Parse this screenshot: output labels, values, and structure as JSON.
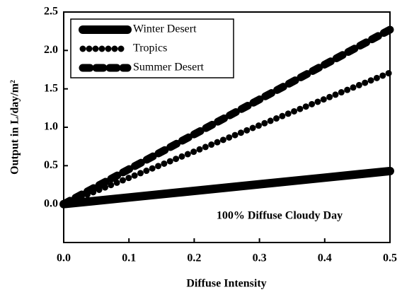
{
  "chart_data": {
    "type": "line",
    "annotation": "100% Diffuse Cloudy Day",
    "xlabel": "Diffuse Intensity",
    "ylabel": "Output in L/day/m²",
    "x": [
      0,
      0.1,
      0.2,
      0.3,
      0.4,
      0.5
    ],
    "series": [
      {
        "name": "Winter Desert",
        "color": "#000000",
        "style": "solid",
        "values": [
          0,
          0.086,
          0.172,
          0.258,
          0.344,
          0.43
        ]
      },
      {
        "name": "Tropics",
        "color": "#000000",
        "style": "dotted",
        "values": [
          0,
          0.342,
          0.684,
          1.026,
          1.368,
          1.71
        ]
      },
      {
        "name": "Summer Desert",
        "color": "#000000",
        "style": "dashed",
        "values": [
          0,
          0.454,
          0.908,
          1.362,
          1.816,
          2.27
        ]
      }
    ],
    "xlim": [
      0,
      0.5
    ],
    "xticks": [
      {
        "value": 0,
        "label": "0.0"
      },
      0.1,
      0.2,
      0.3,
      0.4,
      0.5
    ],
    "ylim": [
      -0.5,
      2.5
    ],
    "yticks": [
      {
        "value": 0,
        "label": "0.0"
      },
      0.5,
      {
        "value": 1,
        "label": "1.0"
      },
      1.5,
      {
        "value": 2,
        "label": "2.0"
      },
      2.5
    ],
    "legend": "upper left"
  }
}
